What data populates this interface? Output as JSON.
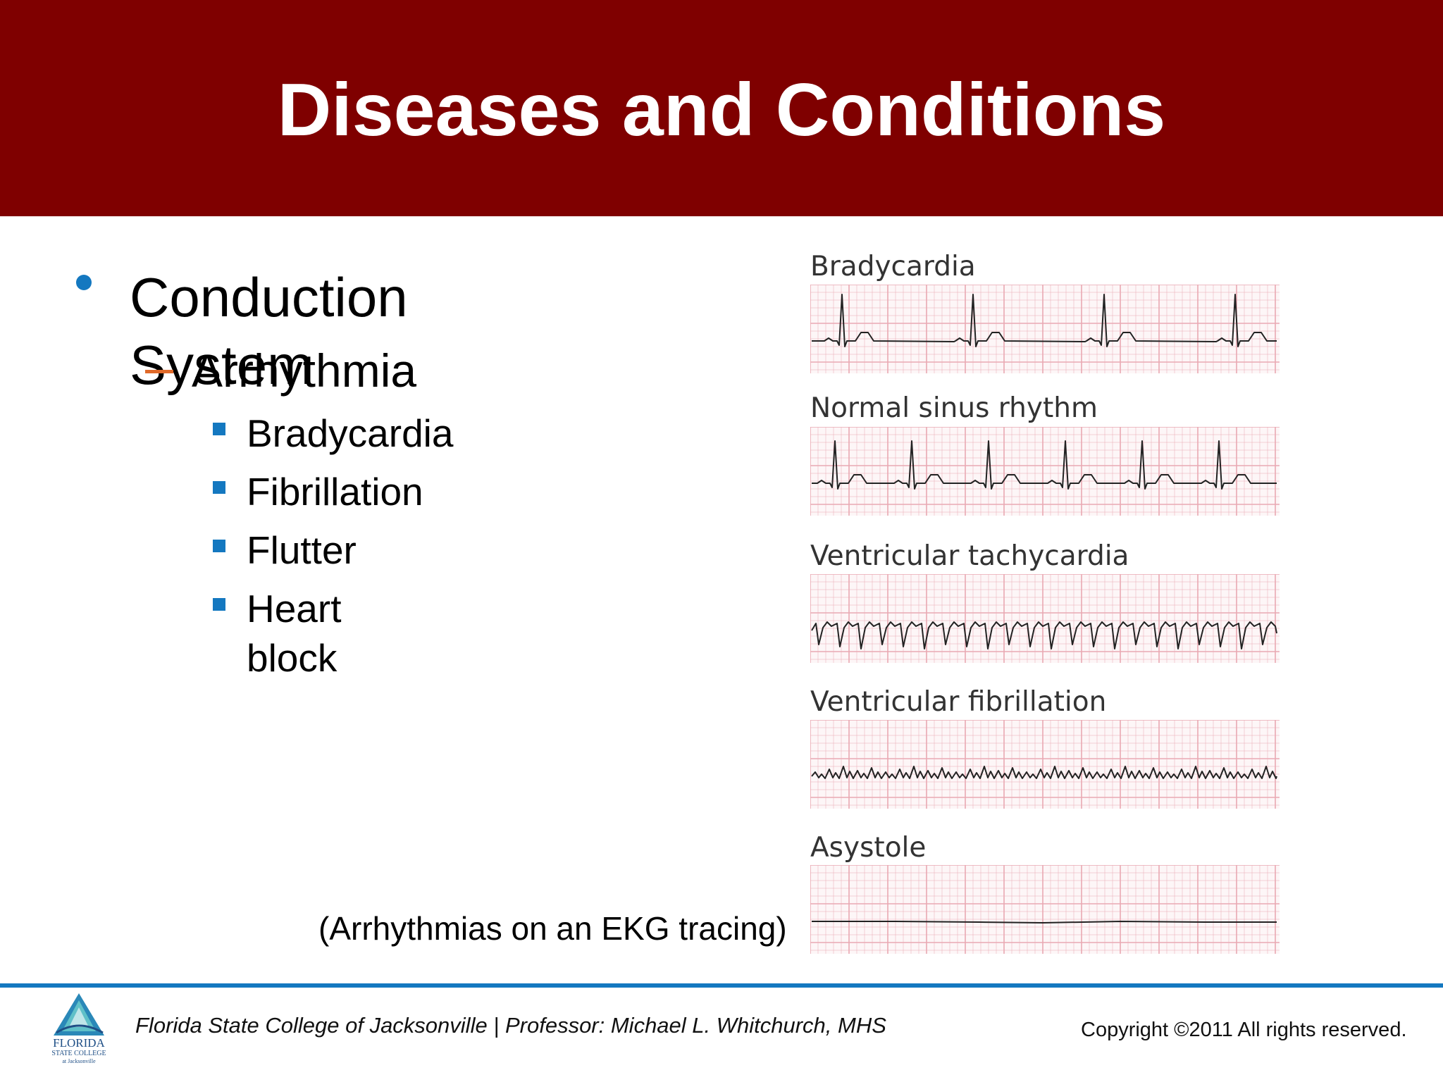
{
  "slide": {
    "title": "Diseases and Conditions",
    "bullet_l1": "Conduction System",
    "bullet_l2": "Arrhythmia",
    "bullets_l3": [
      "Bradycardia",
      "Fibrillation",
      "Flutter",
      "Heart block"
    ],
    "caption": "(Arrhythmias on an EKG tracing)"
  },
  "figure": {
    "strips": [
      {
        "label": "Bradycardia",
        "pattern": "bradycardia"
      },
      {
        "label": "Normal sinus rhythm",
        "pattern": "normal"
      },
      {
        "label": "Ventricular tachycardia",
        "pattern": "vtach"
      },
      {
        "label": "Ventricular fibrillation",
        "pattern": "vfib"
      },
      {
        "label": "Asystole",
        "pattern": "asystole"
      }
    ]
  },
  "footer": {
    "credit": "Florida State College of Jacksonville  |  Professor: Michael L. Whitchurch, MHS",
    "copyright": "Copyright ©2011  All rights reserved.",
    "logo_name": "FLORIDA",
    "logo_sub": "STATE COLLEGE",
    "logo_sub2": "at Jacksonville"
  },
  "colors": {
    "header": "#7f0000",
    "bullet_blue": "#1478c0",
    "dash_orange": "#e06a2a",
    "grid_pink": "#e9a9b3",
    "trace": "#222222"
  }
}
